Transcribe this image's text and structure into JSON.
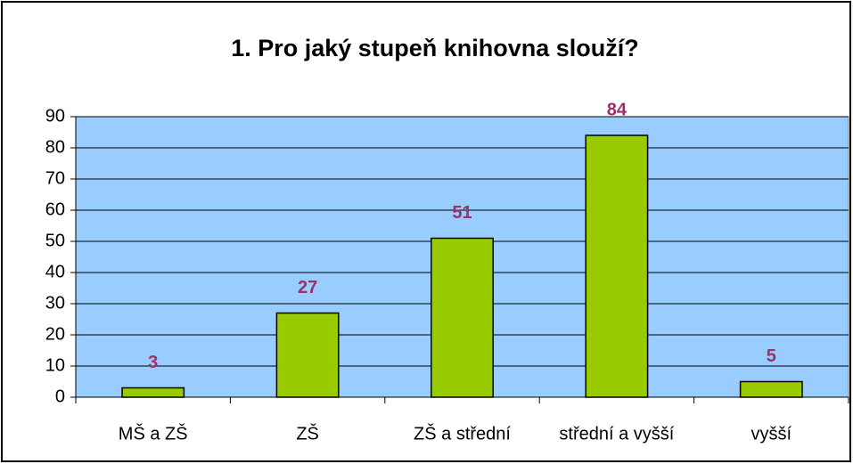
{
  "chart_data": {
    "type": "bar",
    "title": "1. Pro jaký stupeň knihovna slouží?",
    "categories": [
      "MŠ a ZŠ",
      "ZŠ",
      "ZŠ a střední",
      "střední a vyšší",
      "vyšší"
    ],
    "values": [
      3,
      27,
      51,
      84,
      5
    ],
    "color": "#99cc00",
    "label_color": "#993366",
    "plot_background": "#99ccff",
    "ylim": [
      0,
      90
    ],
    "yticks": [
      0,
      10,
      20,
      30,
      40,
      50,
      60,
      70,
      80,
      90
    ],
    "grid": true
  }
}
